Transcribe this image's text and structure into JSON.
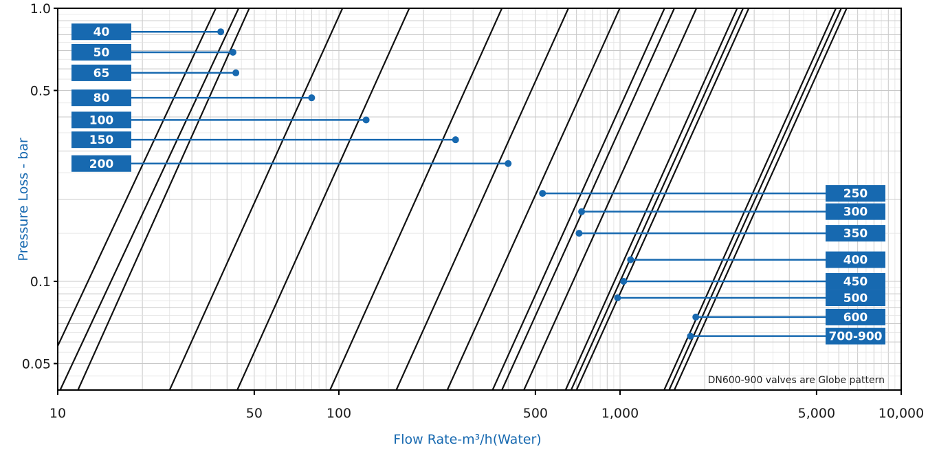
{
  "chart_data": {
    "type": "line",
    "x_scale": "log",
    "y_scale": "log",
    "xlim": [
      10,
      10000
    ],
    "ylim": [
      0.04,
      1.0
    ],
    "xlabel": "Flow Rate-m³/h(Water)",
    "ylabel": "Pressure Loss - bar",
    "x_ticks": [
      {
        "value": 10,
        "label": "10"
      },
      {
        "value": 50,
        "label": "50"
      },
      {
        "value": 100,
        "label": "100"
      },
      {
        "value": 500,
        "label": "500"
      },
      {
        "value": 1000,
        "label": "1,000"
      },
      {
        "value": 5000,
        "label": "5,000"
      },
      {
        "value": 10000,
        "label": "10,000"
      }
    ],
    "y_ticks": [
      {
        "value": 1.0,
        "label": "1.0"
      },
      {
        "value": 0.5,
        "label": "0.5"
      },
      {
        "value": 0.1,
        "label": "0.1"
      },
      {
        "value": 0.05,
        "label": "0.05"
      }
    ],
    "grid": true,
    "curves": [
      {
        "x1": 10,
        "y1": 0.058,
        "x2": 36.5,
        "y2": 1.0
      },
      {
        "x1": 10.2,
        "y1": 0.04,
        "x2": 44,
        "y2": 1.0
      },
      {
        "x1": 11.8,
        "y1": 0.04,
        "x2": 48,
        "y2": 1.0
      },
      {
        "x1": 25,
        "y1": 0.04,
        "x2": 103,
        "y2": 1.0
      },
      {
        "x1": 43.5,
        "y1": 0.04,
        "x2": 178,
        "y2": 1.0
      },
      {
        "x1": 93,
        "y1": 0.04,
        "x2": 380,
        "y2": 1.0
      },
      {
        "x1": 160,
        "y1": 0.04,
        "x2": 655,
        "y2": 1.0
      },
      {
        "x1": 243,
        "y1": 0.04,
        "x2": 998,
        "y2": 1.0
      },
      {
        "x1": 352,
        "y1": 0.04,
        "x2": 1440,
        "y2": 1.0
      },
      {
        "x1": 380,
        "y1": 0.04,
        "x2": 1560,
        "y2": 1.0
      },
      {
        "x1": 455,
        "y1": 0.04,
        "x2": 1870,
        "y2": 1.0
      },
      {
        "x1": 640,
        "y1": 0.04,
        "x2": 2610,
        "y2": 1.0
      },
      {
        "x1": 670,
        "y1": 0.04,
        "x2": 2740,
        "y2": 1.0
      },
      {
        "x1": 700,
        "y1": 0.04,
        "x2": 2870,
        "y2": 1.0
      },
      {
        "x1": 1435,
        "y1": 0.04,
        "x2": 5860,
        "y2": 1.0
      },
      {
        "x1": 1495,
        "y1": 0.04,
        "x2": 6120,
        "y2": 1.0
      },
      {
        "x1": 1560,
        "y1": 0.04,
        "x2": 6400,
        "y2": 1.0
      }
    ],
    "labels_left": [
      {
        "text": "40",
        "x": 38,
        "y": 0.82
      },
      {
        "text": "50",
        "x": 42,
        "y": 0.69
      },
      {
        "text": "65",
        "x": 43,
        "y": 0.58
      },
      {
        "text": "80",
        "x": 80,
        "y": 0.47
      },
      {
        "text": "100",
        "x": 125,
        "y": 0.39
      },
      {
        "text": "150",
        "x": 260,
        "y": 0.33
      },
      {
        "text": "200",
        "x": 400,
        "y": 0.27
      }
    ],
    "labels_right": [
      {
        "text": "250",
        "x": 530,
        "y": 0.21
      },
      {
        "text": "300",
        "x": 730,
        "y": 0.18
      },
      {
        "text": "350",
        "x": 715,
        "y": 0.15
      },
      {
        "text": "400",
        "x": 1090,
        "y": 0.12
      },
      {
        "text": "450",
        "x": 1030,
        "y": 0.1
      },
      {
        "text": "500",
        "x": 980,
        "y": 0.087
      },
      {
        "text": "600",
        "x": 1860,
        "y": 0.074
      },
      {
        "text": "700-900",
        "x": 1780,
        "y": 0.063
      }
    ],
    "note": "DN600-900 valves are Globe pattern"
  },
  "colors": {
    "accent": "#1769b0",
    "curve": "#111111",
    "grid": "#c8c8c8",
    "frame": "#000000"
  }
}
